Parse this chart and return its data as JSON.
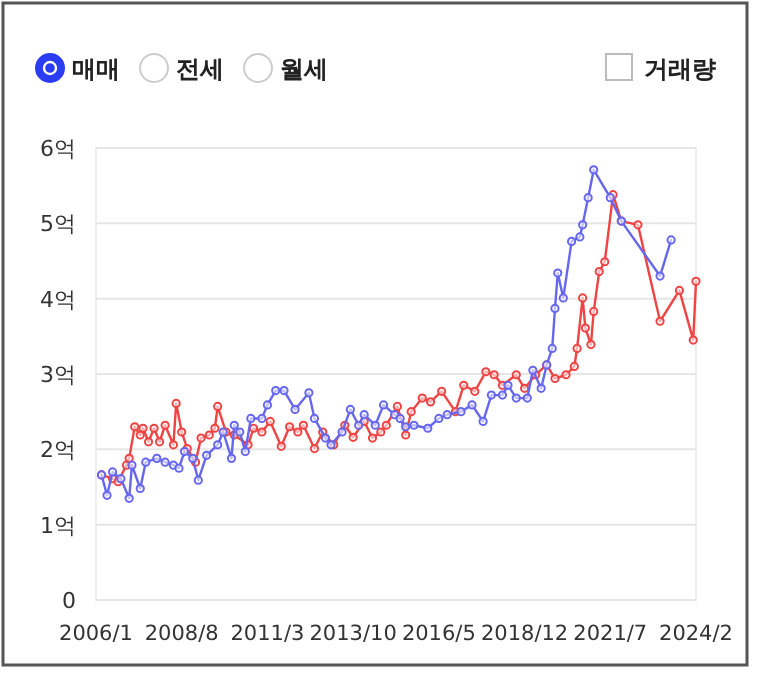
{
  "chart_data": {
    "type": "line",
    "annotations": [
      "매매",
      "전세",
      "월세",
      "거래량"
    ],
    "xlim": [
      "2006-01",
      "2024-02"
    ],
    "xticks": [
      {
        "value": "2006-01",
        "label": "2006/1"
      },
      {
        "value": "2008-08",
        "label": "2008/8"
      },
      {
        "value": "2011-03",
        "label": "2011/3"
      },
      {
        "value": "2013-10",
        "label": "2013/10"
      },
      {
        "value": "2016-05",
        "label": "2016/5"
      },
      {
        "value": "2018-12",
        "label": "2018/12"
      },
      {
        "value": "2021-07",
        "label": "2021/7"
      },
      {
        "value": "2024-02",
        "label": "2024/2"
      }
    ],
    "ylim": [
      0,
      6
    ],
    "yticks": [
      0,
      {
        "value": 1,
        "label": "1억"
      },
      {
        "value": 2,
        "label": "2억"
      },
      {
        "value": 3,
        "label": "3억"
      },
      {
        "value": 4,
        "label": "4억"
      },
      {
        "value": 5,
        "label": "5억"
      },
      {
        "value": 6,
        "label": "6억"
      }
    ],
    "grid": "y",
    "marker": "circle",
    "line_style": "solid",
    "series": [
      {
        "color": "#ee4444",
        "x": [
          "2006-03",
          "2006-07",
          "2006-09",
          "2006-12",
          "2007-01",
          "2007-03",
          "2007-05",
          "2007-06",
          "2007-08",
          "2007-10",
          "2007-12",
          "2008-02",
          "2008-05",
          "2008-06",
          "2008-08",
          "2008-10",
          "2009-01",
          "2009-03",
          "2009-06",
          "2009-08",
          "2009-09",
          "2009-12",
          "2010-03",
          "2010-08",
          "2010-10",
          "2011-01",
          "2011-04",
          "2011-08",
          "2011-11",
          "2012-02",
          "2012-04",
          "2012-08",
          "2012-11",
          "2013-03",
          "2013-07",
          "2013-10",
          "2014-02",
          "2014-05",
          "2014-08",
          "2014-10",
          "2015-02",
          "2015-05",
          "2015-07",
          "2015-11",
          "2016-02",
          "2016-06",
          "2016-11",
          "2017-02",
          "2017-06",
          "2017-10",
          "2018-01",
          "2018-04",
          "2018-09",
          "2018-12",
          "2019-04",
          "2019-08",
          "2019-11",
          "2020-03",
          "2020-06",
          "2020-07",
          "2020-09",
          "2020-10",
          "2020-12",
          "2021-01",
          "2021-03",
          "2021-05",
          "2021-08",
          "2021-11",
          "2022-05",
          "2023-01",
          "2023-08",
          "2024-01",
          "2024-02"
        ],
        "values": [
          1.66,
          1.61,
          1.57,
          1.79,
          1.88,
          2.3,
          2.19,
          2.28,
          2.1,
          2.28,
          2.1,
          2.32,
          2.06,
          2.61,
          2.23,
          2.01,
          1.83,
          2.15,
          2.19,
          2.28,
          2.57,
          2.23,
          2.19,
          2.06,
          2.28,
          2.23,
          2.37,
          2.04,
          2.3,
          2.23,
          2.32,
          2.01,
          2.23,
          2.06,
          2.32,
          2.16,
          2.37,
          2.15,
          2.23,
          2.32,
          2.57,
          2.19,
          2.5,
          2.68,
          2.63,
          2.77,
          2.5,
          2.85,
          2.77,
          3.03,
          2.99,
          2.85,
          2.99,
          2.81,
          2.99,
          3.12,
          2.94,
          2.99,
          3.1,
          3.34,
          4.01,
          3.61,
          3.39,
          3.83,
          4.36,
          4.49,
          5.38,
          5.03,
          4.98,
          3.7,
          4.11,
          3.45,
          4.23
        ]
      },
      {
        "color": "#6666ee",
        "x": [
          "2006-03",
          "2006-05",
          "2006-07",
          "2006-10",
          "2007-01",
          "2007-02",
          "2007-05",
          "2007-07",
          "2007-11",
          "2008-02",
          "2008-05",
          "2008-07",
          "2008-09",
          "2008-12",
          "2009-02",
          "2009-05",
          "2009-09",
          "2009-11",
          "2010-02",
          "2010-03",
          "2010-05",
          "2010-07",
          "2010-09",
          "2011-01",
          "2011-03",
          "2011-06",
          "2011-09",
          "2012-01",
          "2012-06",
          "2012-08",
          "2012-12",
          "2013-02",
          "2013-06",
          "2013-09",
          "2013-12",
          "2014-02",
          "2014-06",
          "2014-09",
          "2015-01",
          "2015-03",
          "2015-05",
          "2015-08",
          "2016-01",
          "2016-05",
          "2016-08",
          "2017-01",
          "2017-05",
          "2017-09",
          "2017-12",
          "2018-04",
          "2018-06",
          "2018-09",
          "2019-01",
          "2019-03",
          "2019-06",
          "2019-08",
          "2019-10",
          "2019-11",
          "2019-12",
          "2020-02",
          "2020-05",
          "2020-08",
          "2020-09",
          "2020-11",
          "2021-01",
          "2021-07",
          "2021-11",
          "2023-01",
          "2023-05"
        ],
        "values": [
          1.66,
          1.39,
          1.7,
          1.61,
          1.35,
          1.79,
          1.48,
          1.83,
          1.88,
          1.83,
          1.79,
          1.75,
          1.97,
          1.88,
          1.59,
          1.92,
          2.06,
          2.23,
          1.88,
          2.32,
          2.23,
          1.97,
          2.41,
          2.41,
          2.59,
          2.78,
          2.78,
          2.53,
          2.75,
          2.41,
          2.15,
          2.06,
          2.23,
          2.53,
          2.32,
          2.46,
          2.32,
          2.59,
          2.46,
          2.41,
          2.3,
          2.32,
          2.28,
          2.41,
          2.46,
          2.5,
          2.59,
          2.37,
          2.72,
          2.72,
          2.85,
          2.68,
          2.68,
          3.05,
          2.81,
          3.12,
          3.34,
          3.87,
          4.34,
          4.01,
          4.76,
          4.82,
          4.98,
          5.34,
          5.71,
          5.34,
          5.03,
          4.3,
          4.78
        ]
      }
    ]
  }
}
